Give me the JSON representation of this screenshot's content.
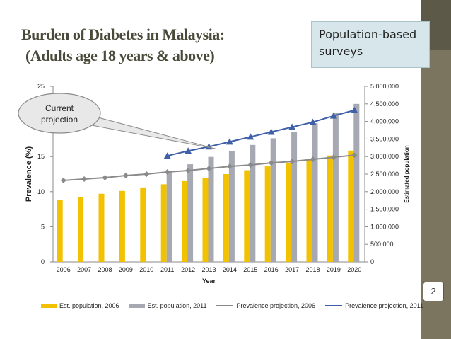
{
  "slide": {
    "title_line1": "Burden of Diabetes in Malaysia:",
    "title_line2": "(Adults age 18 years & above)",
    "callout_line1": "Population-based",
    "callout_line2": "surveys",
    "annotation": "Current projection",
    "page_number": "2"
  },
  "colors": {
    "est_2006": "#f2c200",
    "est_2011": "#a6a8b2",
    "prev_2006": "#8a8a8a",
    "prev_2011": "#3f5fa8"
  },
  "chart_data": {
    "type": "bar",
    "title": "",
    "xlabel": "Year",
    "ylabel": "Prevalence (%)",
    "y2label": "Estimated population",
    "categories": [
      "2006",
      "2007",
      "2008",
      "2009",
      "2010",
      "2011",
      "2012",
      "2013",
      "2014",
      "2015",
      "2016",
      "2017",
      "2018",
      "2019",
      "2020"
    ],
    "ylim": [
      0,
      25
    ],
    "y_ticks": [
      "0",
      "5",
      "10",
      "15",
      "25"
    ],
    "y2lim": [
      0,
      5000000
    ],
    "y2_ticks": [
      "0",
      "500,000",
      "1,000,000",
      "1,500,000",
      "2,000,000",
      "2,500,000",
      "3,000,000",
      "3,500,000",
      "4,000,000",
      "4,500,000",
      "5,000,000"
    ],
    "legend_position": "bottom",
    "series": [
      {
        "name": "Est. population, 2006",
        "kind": "bar",
        "axis": "right",
        "values": [
          1770000,
          1850000,
          1940000,
          2020000,
          2120000,
          2210000,
          2300000,
          2400000,
          2500000,
          2610000,
          2720000,
          2820000,
          2920000,
          3030000,
          3170000
        ]
      },
      {
        "name": "Est. population, 2011",
        "kind": "bar",
        "axis": "right",
        "values": [
          null,
          null,
          null,
          null,
          null,
          2580000,
          2780000,
          2990000,
          3150000,
          3330000,
          3520000,
          3710000,
          3950000,
          4250000,
          4500000
        ]
      },
      {
        "name": "Prevalence projection, 2006",
        "kind": "line",
        "axis": "left",
        "values": [
          11.6,
          11.8,
          12.0,
          12.3,
          12.5,
          12.8,
          13.0,
          13.3,
          13.6,
          13.8,
          14.1,
          14.3,
          14.6,
          14.9,
          15.2
        ]
      },
      {
        "name": "Prevalence projection, 2011",
        "kind": "line",
        "axis": "left",
        "values": [
          null,
          null,
          null,
          null,
          null,
          15.1,
          15.8,
          16.4,
          17.1,
          17.8,
          18.5,
          19.2,
          19.9,
          20.8,
          21.6
        ]
      }
    ]
  }
}
